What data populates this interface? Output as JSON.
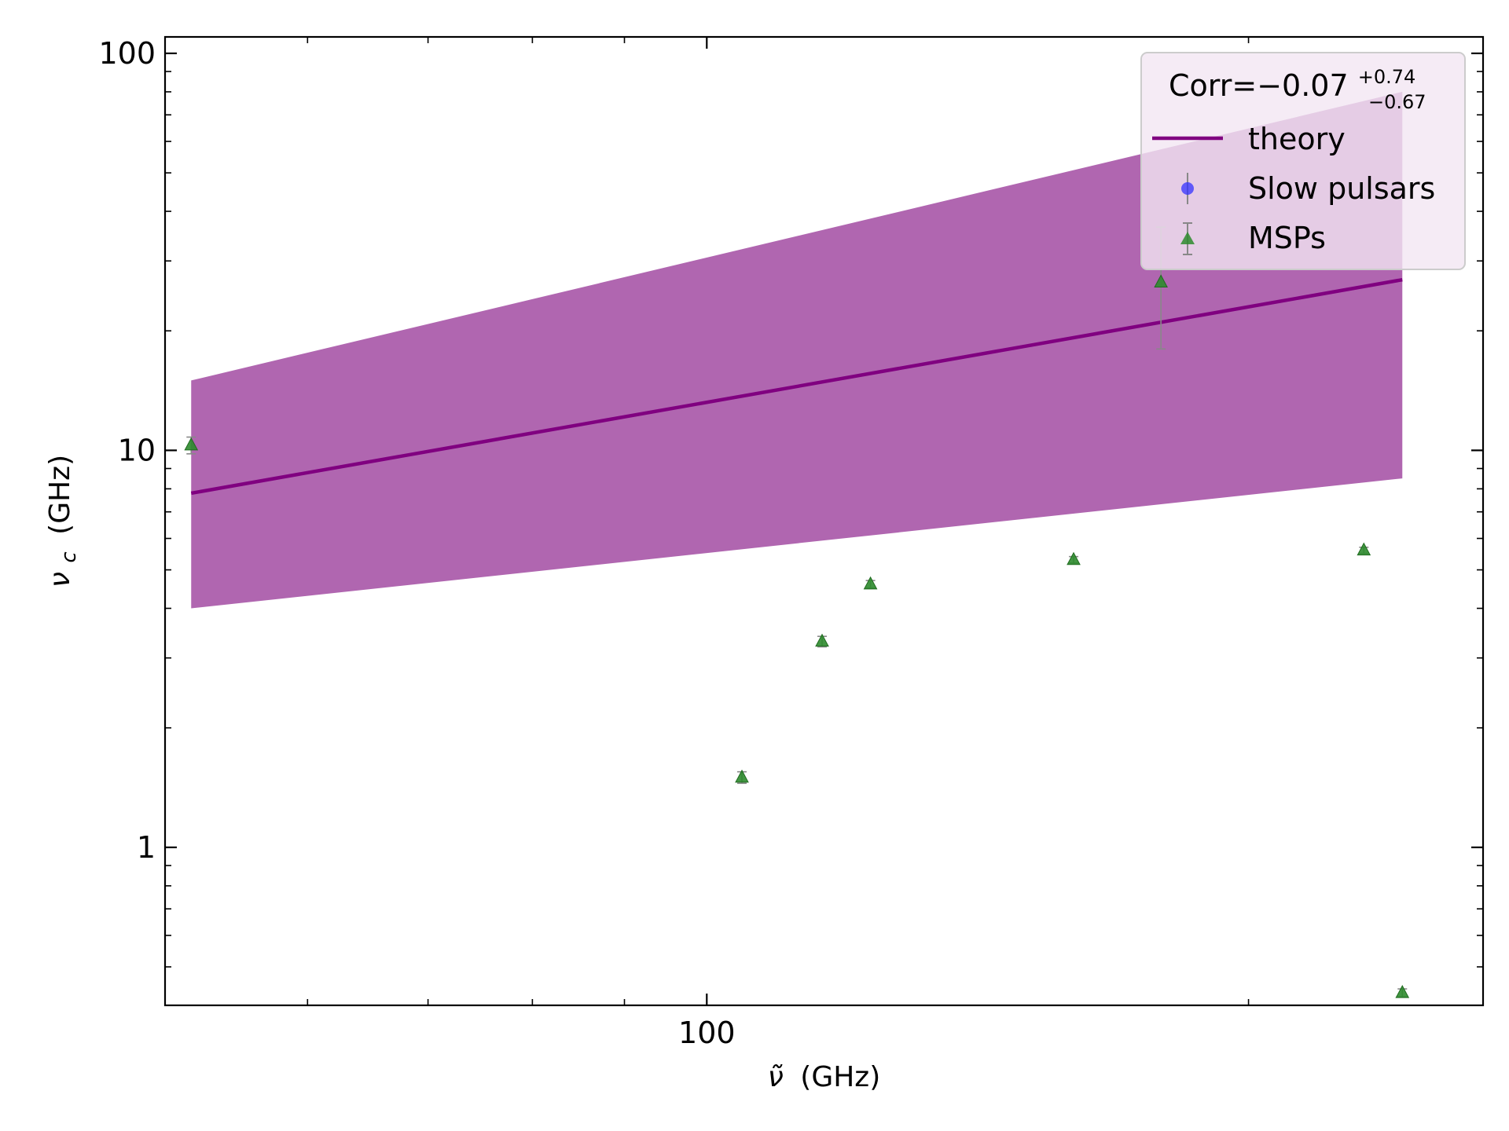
{
  "chart_data": {
    "type": "scatter",
    "x_scale": "log",
    "y_scale": "log",
    "xlabel_symbol": "ν̃",
    "xlabel_unit": "(GHz)",
    "ylabel_symbol": "ν",
    "ylabel_subscript": "c",
    "ylabel_unit": "(GHz)",
    "xlim": [
      50,
      270
    ],
    "ylim": [
      0.4,
      110
    ],
    "x_ticks": [
      {
        "value": 100,
        "label": "100"
      }
    ],
    "y_ticks": [
      {
        "value": 1,
        "label": "1"
      },
      {
        "value": 10,
        "label": "10"
      },
      {
        "value": 100,
        "label": "100"
      }
    ],
    "legend": {
      "placement": "top-right",
      "title_prefix": "Corr=−0.07",
      "title_sup": "+0.74",
      "title_sub": "−0.67",
      "entries": [
        "theory",
        "Slow pulsars",
        "MSPs"
      ]
    },
    "colors": {
      "theory_line": "#800080",
      "theory_band": "#b066b0",
      "msp_marker": "#2e8b2e",
      "msp_marker_edge": "#1f6b1f",
      "slow_marker": "#3333ff",
      "error_bar": "#888888",
      "legend_bg": "#f2e6f2"
    },
    "series": [
      {
        "name": "theory",
        "kind": "line",
        "x": [
          51.7,
          243.5
        ],
        "y": [
          7.8,
          26.9
        ],
        "band_lower": [
          4.0,
          8.5
        ],
        "band_upper": [
          15.0,
          80.0
        ]
      },
      {
        "name": "Slow pulsars",
        "kind": "scatter",
        "marker": "circle",
        "points": []
      },
      {
        "name": "MSPs",
        "kind": "scatter",
        "marker": "triangle",
        "points": [
          {
            "x": 51.7,
            "y": 10.3,
            "yerr_low": 0.5,
            "yerr_high": 0.5
          },
          {
            "x": 104.6,
            "y": 1.5,
            "yerr_low": 0.05,
            "yerr_high": 0.05
          },
          {
            "x": 115.9,
            "y": 3.3,
            "yerr_low": 0.1,
            "yerr_high": 0.1
          },
          {
            "x": 123.3,
            "y": 4.6,
            "yerr_low": 0.1,
            "yerr_high": 0.1
          },
          {
            "x": 159.9,
            "y": 5.3,
            "yerr_low": 0.1,
            "yerr_high": 0.1
          },
          {
            "x": 178.8,
            "y": 26.5,
            "yerr_low": 8.5,
            "yerr_high": 10.0
          },
          {
            "x": 231.8,
            "y": 5.6,
            "yerr_low": 0.1,
            "yerr_high": 0.1
          },
          {
            "x": 243.5,
            "y": 0.43,
            "yerr_low": 0.01,
            "yerr_high": 0.01
          }
        ]
      }
    ]
  }
}
